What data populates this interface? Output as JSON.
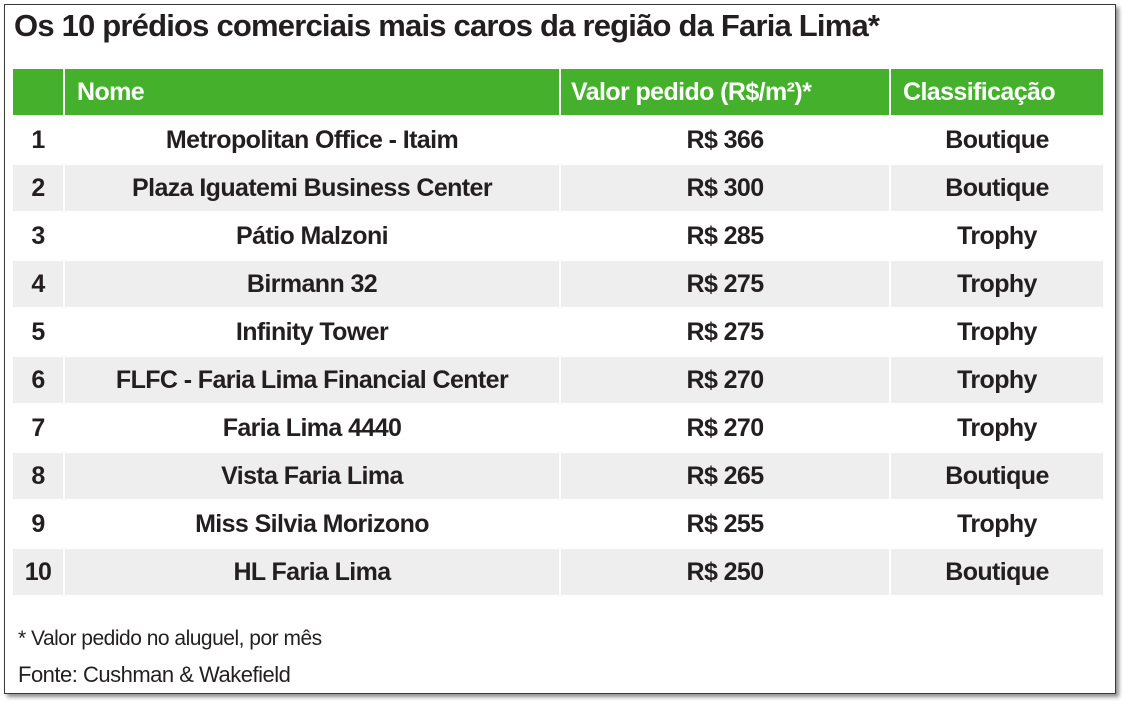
{
  "title": "Os 10 prédios comerciais mais caros da região da Faria Lima*",
  "table": {
    "headers": {
      "rank": "",
      "name": "Nome",
      "value": "Valor pedido (R$/m²)*",
      "classification": "Classificação"
    },
    "rows": [
      {
        "rank": "1",
        "name": "Metropolitan Office - Itaim",
        "value": "R$ 366",
        "classification": "Boutique"
      },
      {
        "rank": "2",
        "name": "Plaza Iguatemi Business Center",
        "value": "R$ 300",
        "classification": "Boutique"
      },
      {
        "rank": "3",
        "name": "Pátio Malzoni",
        "value": "R$ 285",
        "classification": "Trophy"
      },
      {
        "rank": "4",
        "name": "Birmann 32",
        "value": "R$ 275",
        "classification": "Trophy"
      },
      {
        "rank": "5",
        "name": "Infinity Tower",
        "value": "R$ 275",
        "classification": "Trophy"
      },
      {
        "rank": "6",
        "name": "FLFC - Faria Lima Financial Center",
        "value": "R$ 270",
        "classification": "Trophy"
      },
      {
        "rank": "7",
        "name": "Faria Lima 4440",
        "value": "R$ 270",
        "classification": "Trophy"
      },
      {
        "rank": "8",
        "name": "Vista Faria Lima",
        "value": "R$ 265",
        "classification": "Boutique"
      },
      {
        "rank": "9",
        "name": "Miss Silvia Morizono",
        "value": "R$ 255",
        "classification": "Trophy"
      },
      {
        "rank": "10",
        "name": "HL Faria Lima",
        "value": "R$ 250",
        "classification": "Boutique"
      }
    ]
  },
  "footnote": "* Valor pedido no aluguel, por mês",
  "source": "Fonte: Cushman & Wakefield",
  "colors": {
    "header_green": "#45b02b",
    "stripe_gray": "#eeeeee",
    "text": "#231f20"
  }
}
